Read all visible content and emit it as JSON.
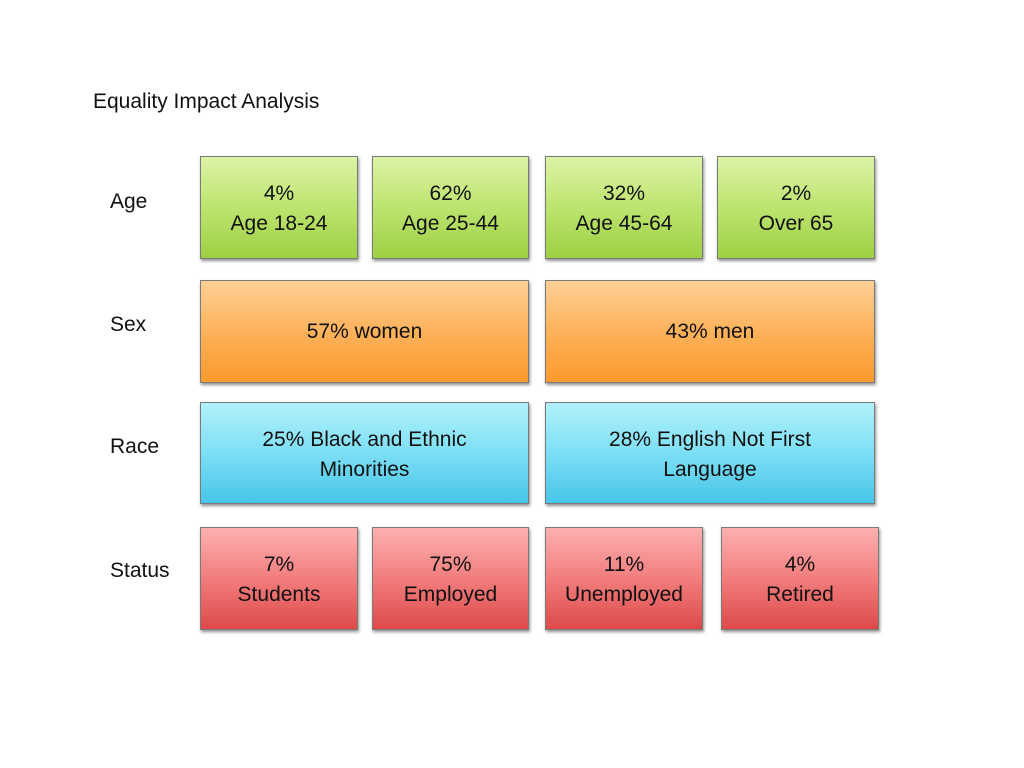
{
  "title": "Equality Impact Analysis",
  "rows": {
    "age": {
      "label": "Age",
      "boxes": [
        {
          "value": "4%",
          "caption": "Age 18-24"
        },
        {
          "value": "62%",
          "caption": "Age 25-44"
        },
        {
          "value": "32%",
          "caption": "Age 45-64"
        },
        {
          "value": "2%",
          "caption": "Over 65"
        }
      ]
    },
    "sex": {
      "label": "Sex",
      "boxes": [
        {
          "text": "57% women"
        },
        {
          "text": "43% men"
        }
      ]
    },
    "race": {
      "label": "Race",
      "boxes": [
        {
          "line1": "25% Black and Ethnic",
          "line2": "Minorities"
        },
        {
          "line1": "28% English Not First",
          "line2": "Language"
        }
      ]
    },
    "status": {
      "label": "Status",
      "boxes": [
        {
          "value": "7%",
          "caption": "Students"
        },
        {
          "value": "75%",
          "caption": "Employed"
        },
        {
          "value": "11%",
          "caption": "Unemployed"
        },
        {
          "value": "4%",
          "caption": "Retired"
        }
      ]
    }
  },
  "colors": {
    "age": "#b6e06a",
    "sex": "#fdae55",
    "race": "#7ddff5",
    "status": "#ee7575"
  }
}
